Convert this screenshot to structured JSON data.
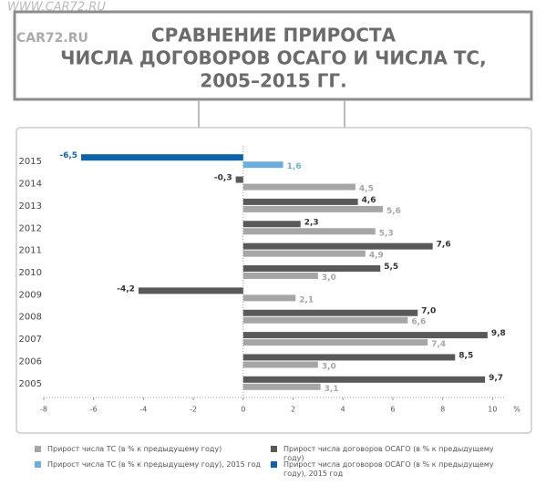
{
  "chart_data": {
    "type": "bar",
    "watermark": [
      "WWW.CAR72.RU",
      "CAR72.RU"
    ],
    "title": [
      "СРАВНЕНИЕ ПРИРОСТА",
      "ЧИСЛА ДОГОВОРОВ ОСАГО И ЧИСЛА ТС,",
      "2005–2015 ГГ."
    ],
    "categories": [
      "2015",
      "2014",
      "2013",
      "2012",
      "2011",
      "2010",
      "2009",
      "2008",
      "2007",
      "2006",
      "2005"
    ],
    "series": [
      {
        "name": "Прирост числа ТС (в % к предыдущему году)",
        "color": "#a6a6a6",
        "values": [
          null,
          4.5,
          5.6,
          5.3,
          4.9,
          3.0,
          2.1,
          6.6,
          7.4,
          3.0,
          3.1
        ],
        "value_labels": [
          null,
          "4,5",
          "5,6",
          "5,3",
          "4,9",
          "3,0",
          "2,1",
          "6,6",
          "7,4",
          "3,0",
          "3,1"
        ]
      },
      {
        "name": "Прирост числа договоров ОСАГО (в % к предыдущему году)",
        "color": "#595959",
        "values": [
          null,
          -0.3,
          4.6,
          2.3,
          7.6,
          5.5,
          -4.2,
          7.0,
          9.8,
          8.5,
          9.7
        ],
        "value_labels": [
          null,
          "-0,3",
          "4,6",
          "2,3",
          "7,6",
          "5,5",
          "-4,2",
          "7,0",
          "9,8",
          "8,5",
          "9,7"
        ]
      },
      {
        "name": "Прирост числа ТС (в % к предыдущему году), 2015 год",
        "color": "#6aaee0",
        "values": [
          1.6,
          null,
          null,
          null,
          null,
          null,
          null,
          null,
          null,
          null,
          null
        ],
        "value_labels": [
          "1,6",
          null,
          null,
          null,
          null,
          null,
          null,
          null,
          null,
          null,
          null
        ]
      },
      {
        "name": "Прирост числа договоров ОСАГО (в % к предыдущему году), 2015 год",
        "color": "#0a64ad",
        "values": [
          -6.5,
          null,
          null,
          null,
          null,
          null,
          null,
          null,
          null,
          null,
          null
        ],
        "value_labels": [
          "-6,5",
          null,
          null,
          null,
          null,
          null,
          null,
          null,
          null,
          null,
          null
        ]
      }
    ],
    "xlim": [
      -8,
      10.5
    ],
    "xticks": [
      -8,
      -6,
      -4,
      -2,
      0,
      2,
      4,
      6,
      8,
      10
    ],
    "x_label": "%"
  }
}
